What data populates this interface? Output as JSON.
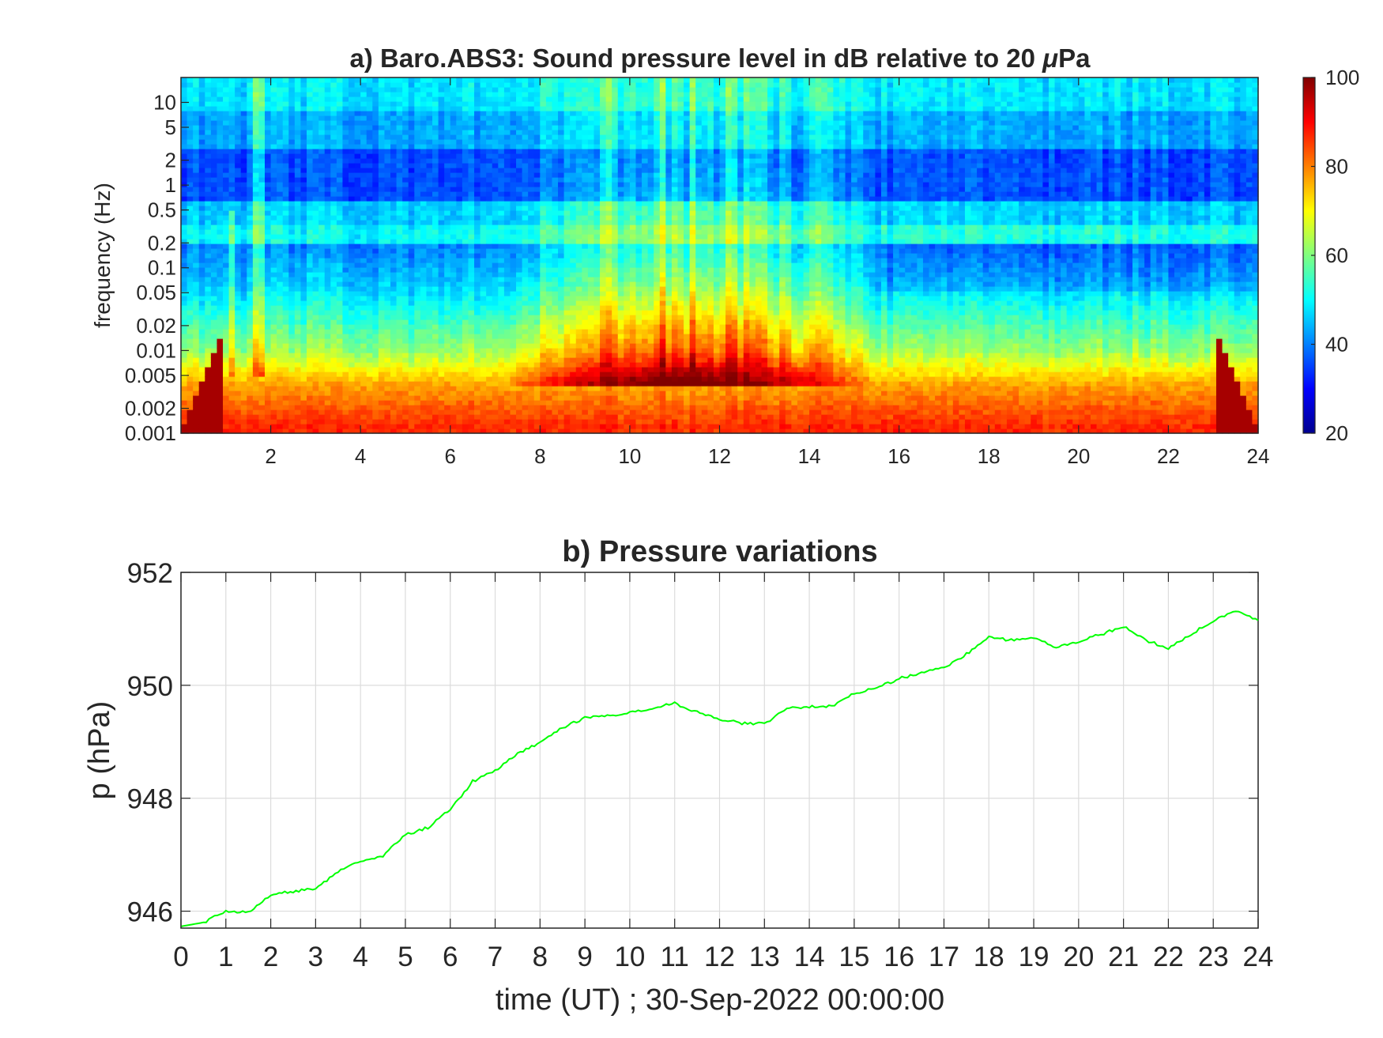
{
  "chart_data": [
    {
      "type": "heatmap",
      "title": "a) Baro.ABS3: Sound pressure level in dB relative to 20 μPa",
      "title_parts": [
        "a) Baro.ABS3: Sound pressure level in dB relative to 20 ",
        "μ",
        "Pa"
      ],
      "ylabel": "frequency (Hz)",
      "xlabel": "",
      "xlim": [
        0,
        24
      ],
      "ylim": [
        0.001,
        20
      ],
      "yscale": "log",
      "x_ticks": [
        2,
        4,
        6,
        8,
        10,
        12,
        14,
        16,
        18,
        20,
        22,
        24
      ],
      "x_tick_labels": [
        "2",
        "4",
        "6",
        "8",
        "10",
        "12",
        "14",
        "16",
        "18",
        "20",
        "22",
        "24"
      ],
      "y_ticks": [
        0.001,
        0.002,
        0.005,
        0.01,
        0.02,
        0.05,
        0.1,
        0.2,
        0.5,
        1,
        2,
        5,
        10
      ],
      "y_tick_labels": [
        "0.001",
        "0.002",
        "0.005",
        "0.01",
        "0.02",
        "0.05",
        "0.1",
        "0.2",
        "0.5",
        "1",
        "2",
        "5",
        "10"
      ],
      "colormap": "jet",
      "colorbar": {
        "range": [
          20,
          100
        ],
        "ticks": [
          20,
          40,
          60,
          80,
          100
        ],
        "tick_labels": [
          "20",
          "40",
          "60",
          "80",
          "100"
        ]
      },
      "grid": false
    },
    {
      "type": "line",
      "title": "b) Pressure variations",
      "xlabel": "time (UT) ; 30-Sep-2022 00:00:00",
      "ylabel": "p (hPa)",
      "xlim": [
        0,
        24
      ],
      "ylim": [
        945.7,
        952
      ],
      "x_ticks": [
        0,
        1,
        2,
        3,
        4,
        5,
        6,
        7,
        8,
        9,
        10,
        11,
        12,
        13,
        14,
        15,
        16,
        17,
        18,
        19,
        20,
        21,
        22,
        23,
        24
      ],
      "x_tick_labels": [
        "0",
        "1",
        "2",
        "3",
        "4",
        "5",
        "6",
        "7",
        "8",
        "9",
        "10",
        "11",
        "12",
        "13",
        "14",
        "15",
        "16",
        "17",
        "18",
        "19",
        "20",
        "21",
        "22",
        "23",
        "24"
      ],
      "y_ticks": [
        946,
        948,
        950,
        952
      ],
      "y_tick_labels": [
        "946",
        "948",
        "950",
        "952"
      ],
      "grid": true,
      "line_color": "#00ff00",
      "series": [
        {
          "x": [
            0,
            0.5,
            1,
            1.5,
            2,
            2.5,
            3,
            3.5,
            4,
            4.5,
            5,
            5.5,
            6,
            6.5,
            7,
            7.5,
            8,
            8.5,
            9,
            9.5,
            10,
            10.5,
            11,
            11.5,
            12,
            12.5,
            13,
            13.5,
            14,
            14.5,
            15,
            15.5,
            16,
            16.5,
            17,
            17.5,
            18,
            18.5,
            19,
            19.5,
            20,
            20.5,
            21,
            21.5,
            22,
            22.5,
            23,
            23.5,
            24
          ],
          "y": [
            945.73,
            945.8,
            946.0,
            945.98,
            946.3,
            946.35,
            946.4,
            946.7,
            946.88,
            946.98,
            947.35,
            947.48,
            947.8,
            948.3,
            948.48,
            948.8,
            948.97,
            949.25,
            949.42,
            949.46,
            949.52,
            949.6,
            949.68,
            949.52,
            949.4,
            949.33,
            949.32,
            949.6,
            949.62,
            949.63,
            949.85,
            949.95,
            950.12,
            950.22,
            950.3,
            950.55,
            950.85,
            950.8,
            950.83,
            950.68,
            950.78,
            950.9,
            951.05,
            950.8,
            950.65,
            950.9,
            951.15,
            951.32,
            951.15
          ]
        }
      ]
    }
  ]
}
